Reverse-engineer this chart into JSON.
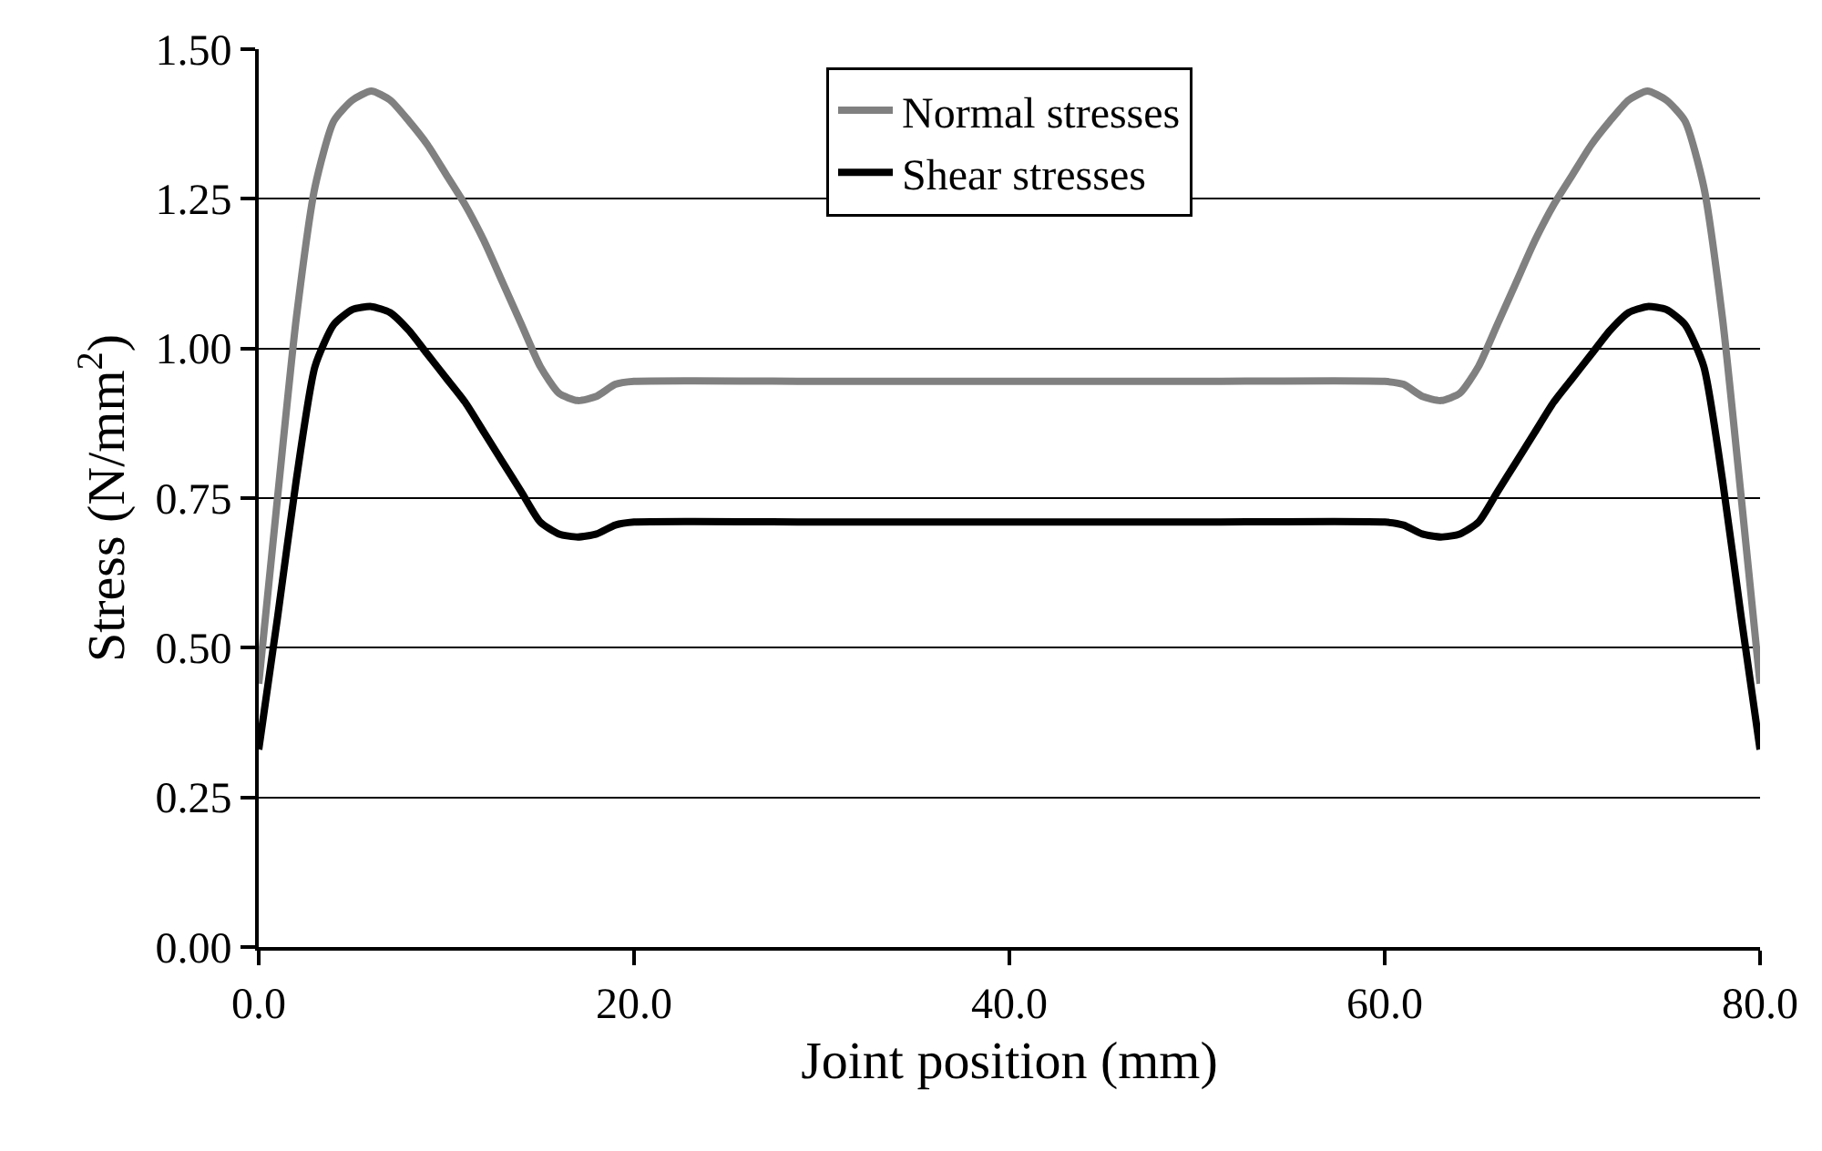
{
  "chart_data": {
    "type": "line",
    "xlabel": "Joint position (mm)",
    "ylabel": "Stress (N/mm$^{2}$)",
    "x": [
      0,
      1,
      2,
      3,
      4,
      5,
      6,
      7,
      8,
      9,
      10,
      11,
      12,
      13,
      14,
      15,
      16,
      17,
      18,
      19,
      20,
      30,
      40,
      50,
      60,
      61,
      62,
      63,
      64,
      65,
      66,
      67,
      68,
      69,
      70,
      71,
      72,
      73,
      74,
      75,
      76,
      77,
      78,
      79,
      80
    ],
    "series": [
      {
        "name": "Normal stresses",
        "color": "#808080",
        "values": [
          0.44,
          0.75,
          1.05,
          1.27,
          1.38,
          1.415,
          1.43,
          1.415,
          1.38,
          1.34,
          1.29,
          1.24,
          1.18,
          1.11,
          1.04,
          0.97,
          0.925,
          0.913,
          0.92,
          0.94,
          0.945,
          0.945,
          0.945,
          0.945,
          0.945,
          0.94,
          0.92,
          0.913,
          0.925,
          0.97,
          1.04,
          1.11,
          1.18,
          1.24,
          1.29,
          1.34,
          1.38,
          1.415,
          1.43,
          1.415,
          1.38,
          1.27,
          1.05,
          0.75,
          0.44
        ]
      },
      {
        "name": "Shear stresses",
        "color": "#000000",
        "values": [
          0.33,
          0.55,
          0.78,
          0.97,
          1.04,
          1.065,
          1.07,
          1.06,
          1.03,
          0.99,
          0.95,
          0.91,
          0.86,
          0.81,
          0.76,
          0.71,
          0.69,
          0.685,
          0.69,
          0.705,
          0.71,
          0.71,
          0.71,
          0.71,
          0.71,
          0.705,
          0.69,
          0.685,
          0.69,
          0.71,
          0.76,
          0.81,
          0.86,
          0.91,
          0.95,
          0.99,
          1.03,
          1.06,
          1.07,
          1.065,
          1.04,
          0.97,
          0.78,
          0.55,
          0.33
        ]
      }
    ],
    "xlim": [
      0,
      80
    ],
    "xticks": [
      {
        "value": 0,
        "label": "0.0"
      },
      {
        "value": 20,
        "label": "20.0"
      },
      {
        "value": 40,
        "label": "40.0"
      },
      {
        "value": 60,
        "label": "60.0"
      },
      {
        "value": 80,
        "label": "80.0"
      }
    ],
    "ylim": [
      0,
      1.5
    ],
    "yticks": [
      {
        "value": 0,
        "label": "0.00"
      },
      {
        "value": 0.25,
        "label": "0.25"
      },
      {
        "value": 0.5,
        "label": "0.50"
      },
      {
        "value": 0.75,
        "label": "0.75"
      },
      {
        "value": 1,
        "label": "1.00"
      },
      {
        "value": 1.25,
        "label": "1.25"
      },
      {
        "value": 1.5,
        "label": "1.50"
      }
    ],
    "grid": "y",
    "legend": "top",
    "line_style": "solid",
    "marker": "none"
  }
}
